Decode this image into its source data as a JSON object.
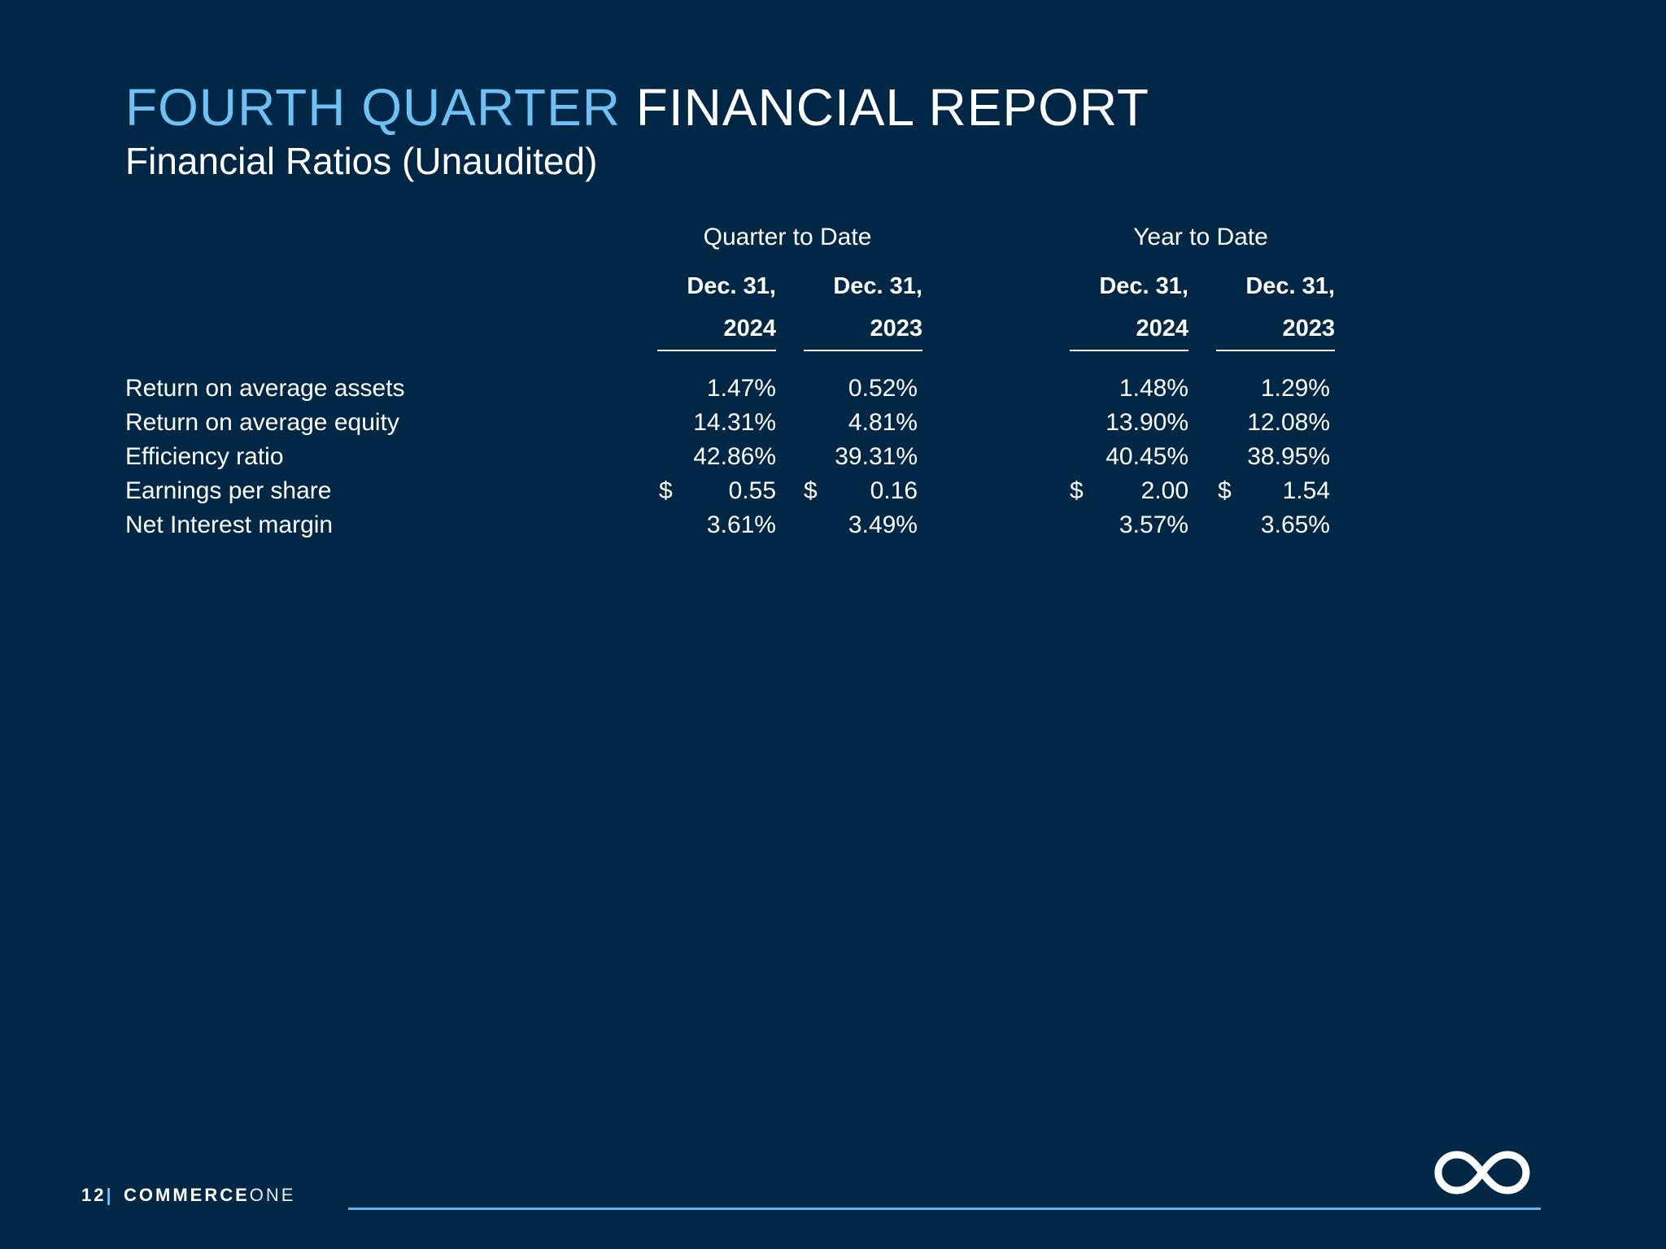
{
  "title": {
    "accent": "FOURTH QUARTER",
    "main": "FINANCIAL REPORT"
  },
  "subtitle": "Financial Ratios (Unaudited)",
  "table": {
    "groups": [
      "Quarter to Date",
      "Year to Date"
    ],
    "columns": [
      {
        "line1": "Dec. 31,",
        "line2": "2024"
      },
      {
        "line1": "Dec. 31,",
        "line2": "2023"
      },
      {
        "line1": "Dec. 31,",
        "line2": "2024"
      },
      {
        "line1": "Dec. 31,",
        "line2": "2023"
      }
    ],
    "rows": [
      {
        "label": "Return on average assets",
        "values": [
          "1.47%",
          "0.52%",
          "1.48%",
          "1.29%"
        ],
        "prefix": [
          "",
          "",
          "",
          ""
        ]
      },
      {
        "label": "Return on average equity",
        "values": [
          "14.31%",
          "4.81%",
          "13.90%",
          "12.08%"
        ],
        "prefix": [
          "",
          "",
          "",
          ""
        ]
      },
      {
        "label": "Efficiency ratio",
        "values": [
          "42.86%",
          "39.31%",
          "40.45%",
          "38.95%"
        ],
        "prefix": [
          "",
          "",
          "",
          ""
        ]
      },
      {
        "label": "Earnings per share",
        "values": [
          "0.55",
          "0.16",
          "2.00",
          "1.54"
        ],
        "prefix": [
          "$",
          "$",
          "$",
          "$"
        ]
      },
      {
        "label": "Net Interest margin",
        "values": [
          "3.61%",
          "3.49%",
          "3.57%",
          "3.65%"
        ],
        "prefix": [
          "",
          "",
          "",
          ""
        ]
      }
    ]
  },
  "footer": {
    "page_number": "12",
    "separator": "|",
    "brand_bold": "COMMERCE",
    "brand_light": "ONE",
    "logo_icon": "infinity-icon"
  },
  "colors": {
    "background": "#002846",
    "accent": "#6dc1f5",
    "text": "#ffffff",
    "rule": "#5fb4ea"
  }
}
